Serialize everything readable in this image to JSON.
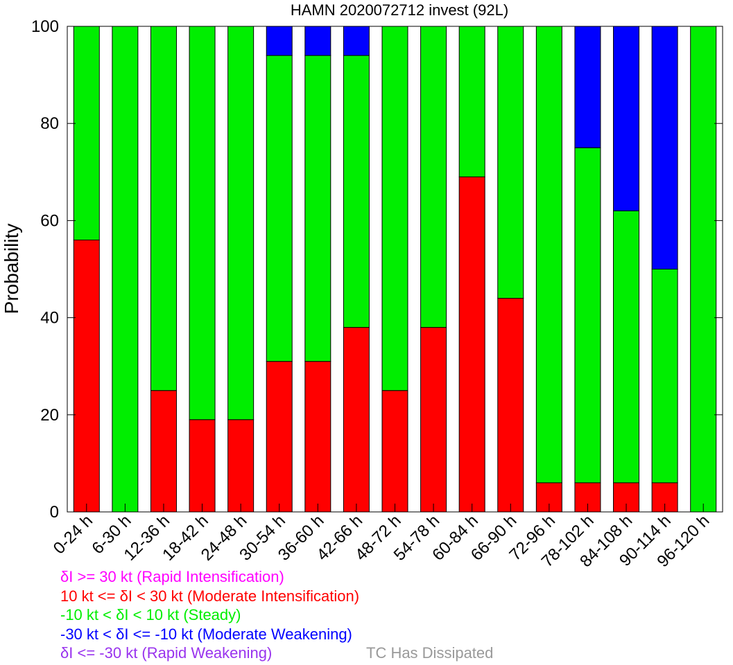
{
  "chart_data": {
    "type": "bar",
    "stacked": true,
    "title": "HAMN 2020072712 invest (92L)",
    "xlabel": "",
    "ylabel": "Probability",
    "ylim": [
      0,
      100
    ],
    "yticks": [
      0,
      20,
      40,
      60,
      80,
      100
    ],
    "grid": false,
    "categories": [
      "0-24 h",
      "6-30 h",
      "12-36 h",
      "18-42 h",
      "24-48 h",
      "30-54 h",
      "36-60 h",
      "42-66 h",
      "48-72 h",
      "54-78 h",
      "60-84 h",
      "66-90 h",
      "72-96 h",
      "78-102 h",
      "84-108 h",
      "90-114 h",
      "96-120 h"
    ],
    "series": [
      {
        "name": "10 kt <= δI < 30 kt (Moderate Intensification)",
        "color": "#ff0000",
        "values": [
          56,
          0,
          25,
          19,
          19,
          31,
          31,
          38,
          25,
          38,
          69,
          44,
          6,
          6,
          6,
          6,
          0
        ]
      },
      {
        "name": "-10 kt < δI < 10 kt (Steady)",
        "color": "#00ee00",
        "values": [
          44,
          100,
          75,
          81,
          81,
          63,
          63,
          56,
          75,
          62,
          31,
          56,
          94,
          69,
          56,
          44,
          100
        ]
      },
      {
        "name": "-30 kt < δI <= -10 kt (Moderate Weakening)",
        "color": "#0000ff",
        "values": [
          0,
          0,
          0,
          0,
          0,
          6,
          6,
          6,
          0,
          0,
          0,
          0,
          0,
          25,
          38,
          50,
          0
        ]
      }
    ]
  },
  "legend": {
    "ri": "δI >= 30 kt (Rapid Intensification)",
    "mi": "10 kt <= δI < 30 kt (Moderate Intensification)",
    "st": "-10 kt < δI < 10 kt (Steady)",
    "mw": "-30 kt < δI <= -10 kt (Moderate Weakening)",
    "rw": "δI <= -30 kt (Rapid Weakening)",
    "dissipated": "TC Has Dissipated"
  },
  "colors": {
    "rapid_intensification": "#ff00ff",
    "moderate_intensification": "#ff0000",
    "steady": "#00ee00",
    "moderate_weakening": "#0000ff",
    "rapid_weakening": "#9933ee",
    "dissipated": "#999999"
  }
}
